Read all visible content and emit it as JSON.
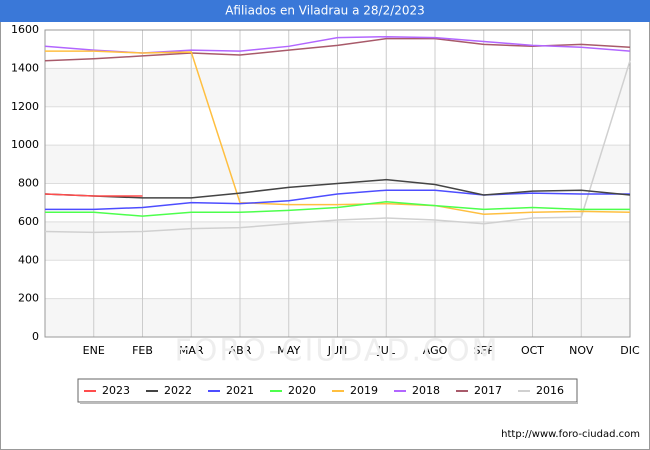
{
  "chart_data": {
    "type": "line",
    "title": "Afiliados en Viladrau a 28/2/2023",
    "watermark": "FORO-CIUDAD.COM",
    "footer": "http://www.foro-ciudad.com",
    "categories": [
      null,
      "ENE",
      "FEB",
      "MAR",
      "ABR",
      "MAY",
      "JUN",
      "JUL",
      "AGO",
      "SEP",
      "OCT",
      "NOV",
      "DIC"
    ],
    "ylim": [
      0,
      1600
    ],
    "yticks": [
      0,
      200,
      400,
      600,
      800,
      1000,
      1200,
      1400,
      1600
    ],
    "grid": true,
    "legend": "bottom",
    "series": [
      {
        "name": "2023",
        "color": "#ff4d4d",
        "values": [
          745,
          735,
          735,
          null,
          null,
          null,
          null,
          null,
          null,
          null,
          null,
          null,
          null
        ]
      },
      {
        "name": "2022",
        "color": "#444444",
        "values": [
          745,
          735,
          725,
          725,
          750,
          780,
          800,
          820,
          795,
          740,
          760,
          765,
          740
        ]
      },
      {
        "name": "2021",
        "color": "#4d4dff",
        "values": [
          665,
          665,
          675,
          700,
          695,
          710,
          745,
          765,
          765,
          740,
          750,
          745,
          745
        ]
      },
      {
        "name": "2020",
        "color": "#4dff4d",
        "values": [
          650,
          650,
          630,
          650,
          650,
          660,
          675,
          705,
          685,
          665,
          675,
          665,
          665
        ]
      },
      {
        "name": "2019",
        "color": "#ffbf40",
        "values": [
          1490,
          1490,
          1480,
          1485,
          700,
          690,
          690,
          695,
          685,
          640,
          650,
          655,
          650
        ]
      },
      {
        "name": "2018",
        "color": "#b266ff",
        "values": [
          1515,
          1495,
          1480,
          1495,
          1490,
          1515,
          1560,
          1565,
          1560,
          1540,
          1520,
          1510,
          1490
        ]
      },
      {
        "name": "2017",
        "color": "#a85a6a",
        "values": [
          1440,
          1450,
          1465,
          1480,
          1470,
          1495,
          1520,
          1555,
          1555,
          1525,
          1515,
          1525,
          1510
        ]
      },
      {
        "name": "2016",
        "color": "#d0d0d0",
        "values": [
          550,
          545,
          550,
          565,
          570,
          590,
          610,
          620,
          610,
          590,
          620,
          625,
          1440
        ]
      }
    ]
  }
}
